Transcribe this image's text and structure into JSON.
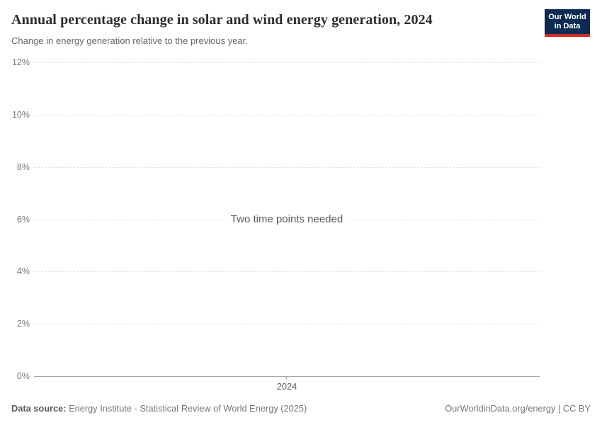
{
  "header": {
    "title": "Annual percentage change in solar and wind energy generation, 2024",
    "subtitle": "Change in energy generation relative to the previous year."
  },
  "logo": {
    "line1": "Our World",
    "line2": "in Data",
    "background_color": "#0d2b52",
    "accent_color": "#d42b21"
  },
  "chart_data": {
    "type": "line",
    "title": "Annual percentage change in solar and wind energy generation, 2024",
    "subtitle": "Change in energy generation relative to the previous year.",
    "series": [],
    "empty_state_message": "Two time points needed",
    "x_ticks": [
      "2024"
    ],
    "y_ticks": [
      "0%",
      "2%",
      "4%",
      "6%",
      "8%",
      "10%",
      "12%"
    ],
    "ylim": [
      0,
      12
    ],
    "grid": true,
    "gridline_color": "#e3e3e3",
    "axis_color": "#a7a7a7"
  },
  "footer": {
    "source_label": "Data source:",
    "source_text": " Energy Institute - Statistical Review of World Energy (2025)",
    "credit_text": "OurWorldinData.org/energy | CC BY"
  }
}
